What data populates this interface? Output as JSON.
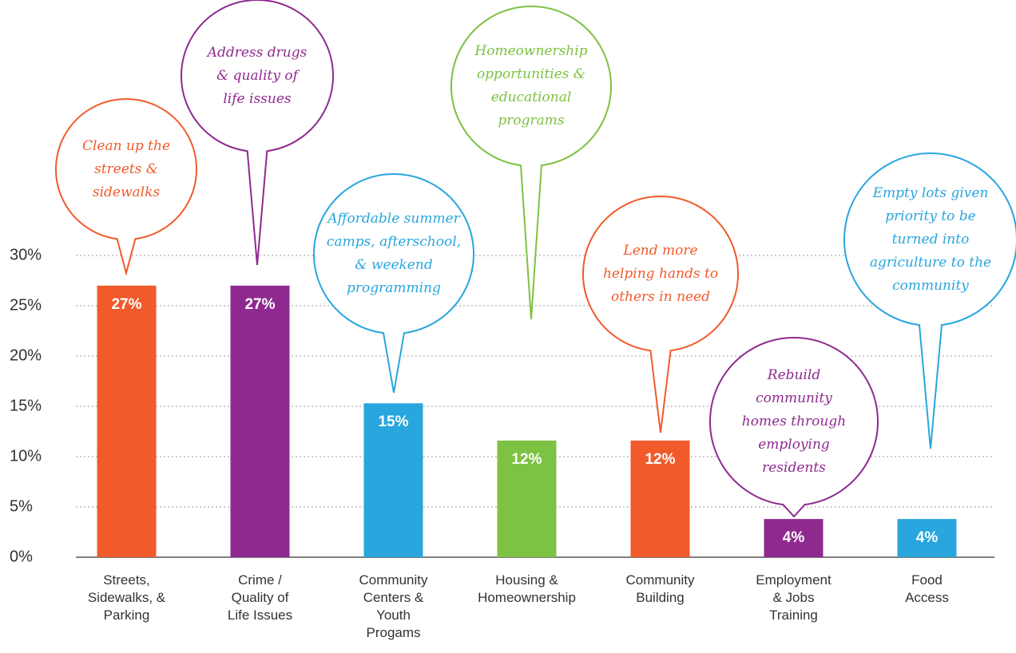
{
  "chart_data": {
    "type": "bar",
    "categories": [
      "Streets,\nSidewalks, &\nParking",
      "Crime /\nQuality of\nLife Issues",
      "Community\nCenters &\nYouth\nProgams",
      "Housing &\nHomeownership",
      "Community\nBuilding",
      "Employment\n& Jobs\nTraining",
      "Food\nAccess"
    ],
    "values": [
      27,
      27,
      15.3,
      11.6,
      11.6,
      3.8,
      3.8
    ],
    "value_labels": [
      "27%",
      "27%",
      "15%",
      "12%",
      "12%",
      "4%",
      "4%"
    ],
    "colors": [
      "#f15a2b",
      "#8e2a8f",
      "#29a6de",
      "#7dc242",
      "#f15a2b",
      "#8e2a8f",
      "#29a6de"
    ],
    "ylim": [
      0,
      30
    ],
    "yticks": [
      {
        "value": 0,
        "label": "0%"
      },
      {
        "value": 5,
        "label": "5%"
      },
      {
        "value": 10,
        "label": "10%"
      },
      {
        "value": 15,
        "label": "15%"
      },
      {
        "value": 20,
        "label": "20%"
      },
      {
        "value": 25,
        "label": "25%"
      },
      {
        "value": 30,
        "label": "30%"
      }
    ],
    "grid": true,
    "annotations": [
      {
        "text": "Clean up the\nstreets &\nsidewalks",
        "color": "#f15a2b"
      },
      {
        "text": "Address drugs\n& quality of\nlife issues",
        "color": "#8e2a8f"
      },
      {
        "text": "Affordable summer\ncamps, afterschool,\n& weekend\nprogramming",
        "color": "#29a6de"
      },
      {
        "text": "Homeownership\nopportunities &\neducational\nprograms",
        "color": "#7dc242"
      },
      {
        "text": "Lend more\nhelping hands to\nothers in need",
        "color": "#f15a2b"
      },
      {
        "text": "Rebuild\ncommunity\nhomes through\nemploying\nresidents",
        "color": "#8e2a8f"
      },
      {
        "text": "Empty lots given\npriority to be\nturned into\nagriculture to the\ncommunity",
        "color": "#29a6de"
      }
    ]
  }
}
